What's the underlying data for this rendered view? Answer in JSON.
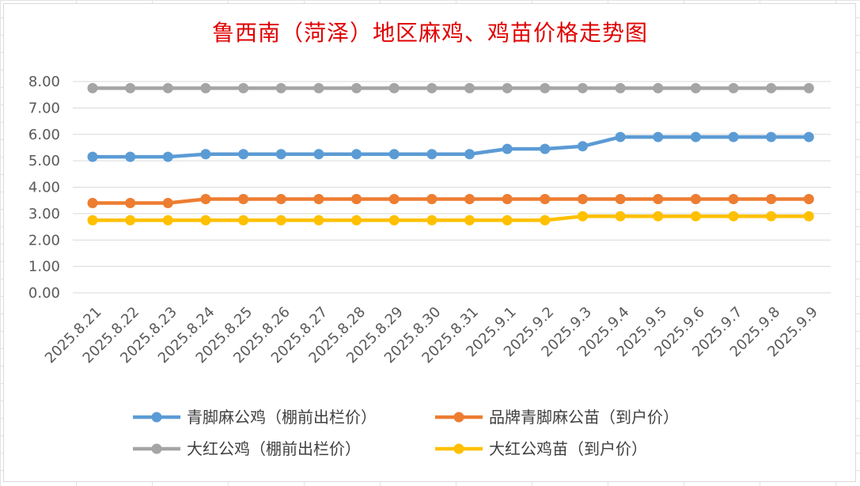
{
  "chart_data": {
    "type": "line",
    "title": "鲁西南（菏泽）地区麻鸡、鸡苗价格走势图",
    "xlabel": "",
    "ylabel": "",
    "ylim": [
      0,
      8
    ],
    "y_ticks": [
      "0.00",
      "1.00",
      "2.00",
      "3.00",
      "4.00",
      "5.00",
      "6.00",
      "7.00",
      "8.00"
    ],
    "grid": "horizontal",
    "legend_placement": "bottom",
    "categories": [
      "2025.8.21",
      "2025.8.22",
      "2025.8.23",
      "2025.8.24",
      "2025.8.25",
      "2025.8.26",
      "2025.8.27",
      "2025.8.28",
      "2025.8.29",
      "2025.8.30",
      "2025.8.31",
      "2025.9.1",
      "2025.9.2",
      "2025.9.3",
      "2025.9.4",
      "2025.9.5",
      "2025.9.6",
      "2025.9.7",
      "2025.9.8",
      "2025.9.9"
    ],
    "series": [
      {
        "name": "青脚麻公鸡（棚前出栏价）",
        "color": "#5b9bd5",
        "values": [
          5.15,
          5.15,
          5.15,
          5.25,
          5.25,
          5.25,
          5.25,
          5.25,
          5.25,
          5.25,
          5.25,
          5.45,
          5.45,
          5.55,
          5.9,
          5.9,
          5.9,
          5.9,
          5.9,
          5.9
        ]
      },
      {
        "name": "品牌青脚麻公苗（到户价）",
        "color": "#ed7d31",
        "values": [
          3.4,
          3.4,
          3.4,
          3.55,
          3.55,
          3.55,
          3.55,
          3.55,
          3.55,
          3.55,
          3.55,
          3.55,
          3.55,
          3.55,
          3.55,
          3.55,
          3.55,
          3.55,
          3.55,
          3.55
        ]
      },
      {
        "name": "大红公鸡（棚前出栏价）",
        "color": "#a5a5a5",
        "values": [
          7.75,
          7.75,
          7.75,
          7.75,
          7.75,
          7.75,
          7.75,
          7.75,
          7.75,
          7.75,
          7.75,
          7.75,
          7.75,
          7.75,
          7.75,
          7.75,
          7.75,
          7.75,
          7.75,
          7.75
        ]
      },
      {
        "name": "大红公鸡苗（到户价）",
        "color": "#ffc000",
        "values": [
          2.75,
          2.75,
          2.75,
          2.75,
          2.75,
          2.75,
          2.75,
          2.75,
          2.75,
          2.75,
          2.75,
          2.75,
          2.75,
          2.9,
          2.9,
          2.9,
          2.9,
          2.9,
          2.9,
          2.9
        ]
      }
    ],
    "draw_order": [
      2,
      0,
      1,
      3
    ],
    "legend_order": [
      0,
      1,
      2,
      3
    ]
  }
}
